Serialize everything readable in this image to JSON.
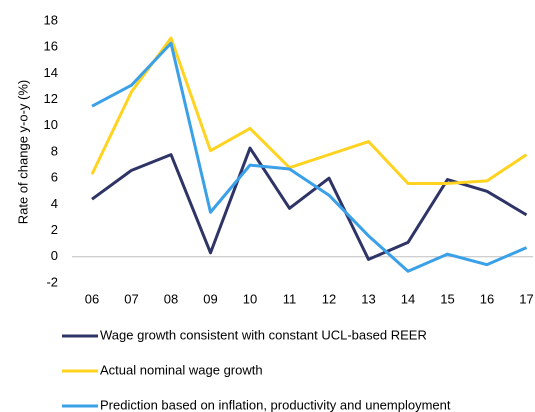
{
  "chart_data": {
    "type": "line",
    "y_label": "Rate of change y-o-y (%)",
    "categories": [
      "06",
      "07",
      "08",
      "09",
      "10",
      "11",
      "12",
      "13",
      "14",
      "15",
      "16",
      "17"
    ],
    "series": [
      {
        "name": "Wage growth consistent with constant UCL-based REER",
        "color": "#2e3466",
        "values": [
          4.4,
          6.6,
          7.8,
          0.3,
          8.3,
          3.7,
          6.0,
          -0.2,
          1.1,
          5.9,
          5.0,
          3.2
        ]
      },
      {
        "name": "Actual nominal wage growth",
        "color": "#ffd31f",
        "values": [
          6.3,
          12.6,
          16.7,
          8.1,
          9.8,
          6.8,
          7.8,
          8.8,
          5.6,
          5.6,
          5.8,
          7.8
        ]
      },
      {
        "name": "Prediction based on inflation, productivity and unemployment",
        "color": "#3aa0e8",
        "values": [
          11.5,
          13.1,
          16.3,
          3.4,
          7.0,
          6.7,
          4.7,
          1.6,
          -1.1,
          0.2,
          -0.6,
          0.7
        ]
      }
    ],
    "ylim": [
      -2,
      18
    ],
    "yticks": [
      -2,
      0,
      2,
      4,
      6,
      8,
      10,
      12,
      14,
      16,
      18
    ]
  }
}
